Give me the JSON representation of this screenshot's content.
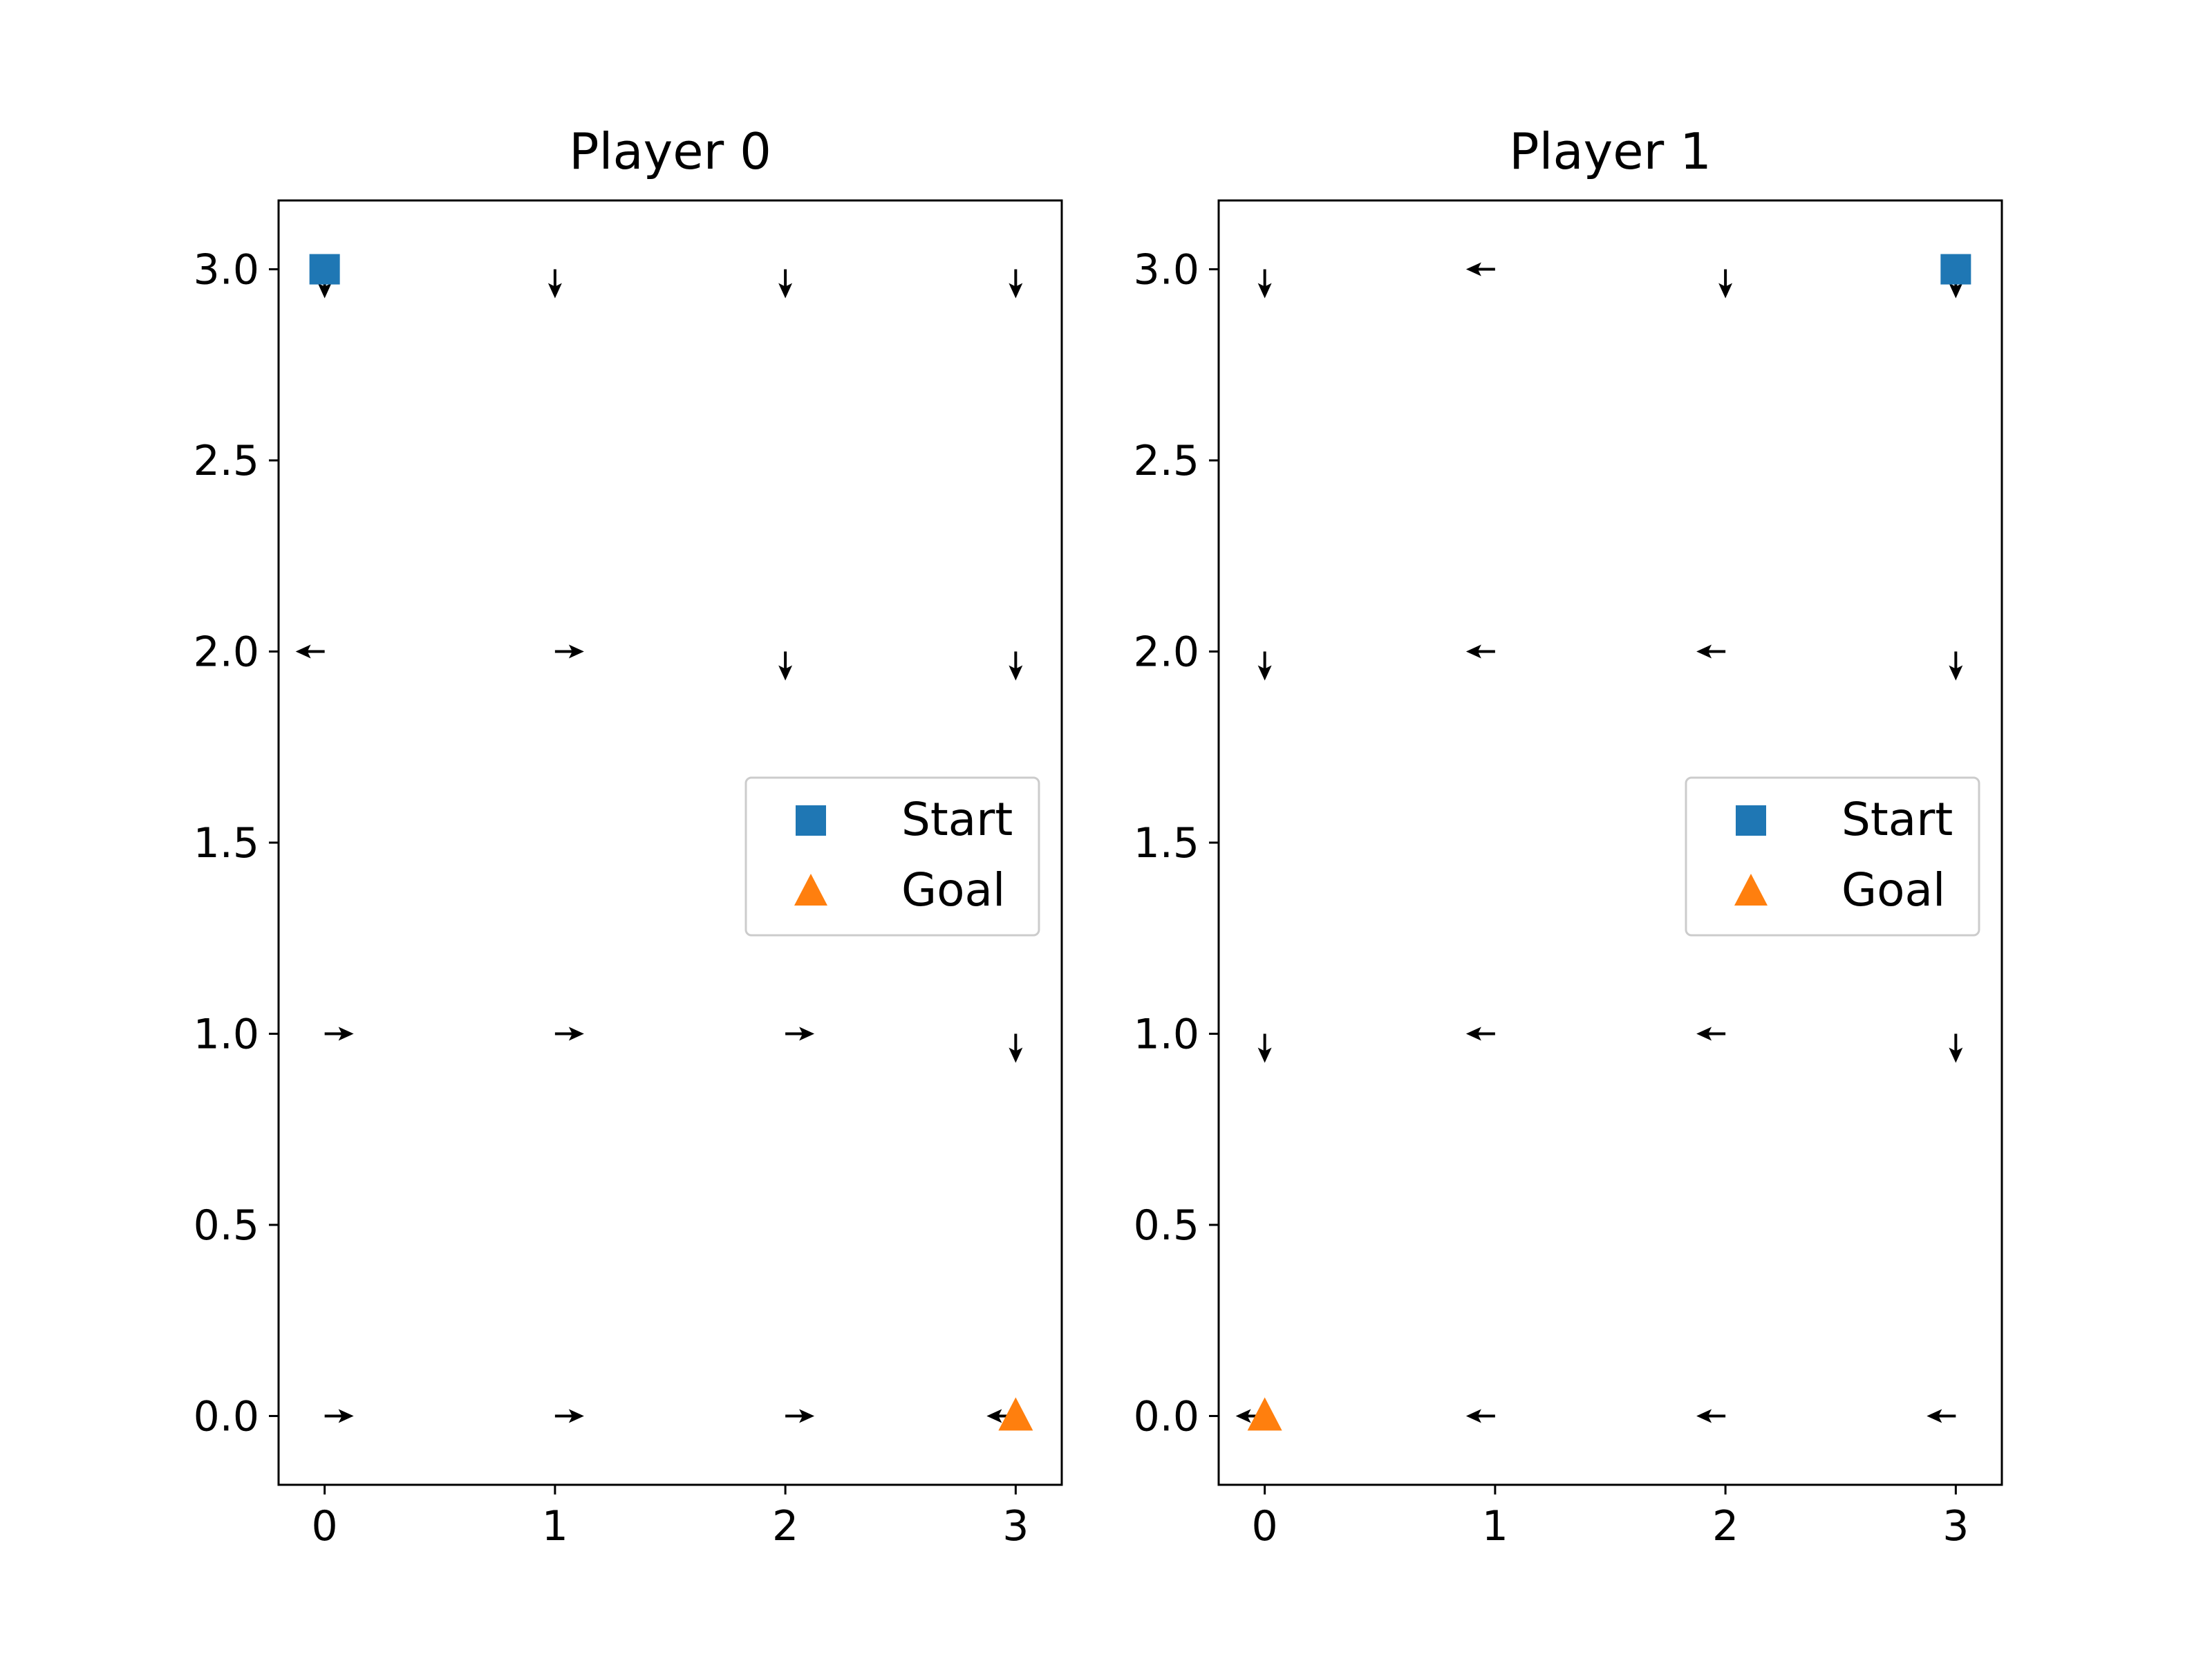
{
  "chart_data": [
    {
      "type": "quiver",
      "title": "Player 0",
      "xlabel": "",
      "ylabel": "",
      "xlim": [
        -0.2,
        3.2
      ],
      "ylim": [
        -0.18,
        3.18
      ],
      "xticks": [
        0,
        1,
        2,
        3
      ],
      "xtick_labels": [
        "0",
        "1",
        "2",
        "3"
      ],
      "yticks": [
        0.0,
        0.5,
        1.0,
        1.5,
        2.0,
        2.5,
        3.0
      ],
      "ytick_labels": [
        "0.0",
        "0.5",
        "1.0",
        "1.5",
        "2.0",
        "2.5",
        "3.0"
      ],
      "arrows": [
        {
          "x": 0,
          "y": 3,
          "dir": "down"
        },
        {
          "x": 1,
          "y": 3,
          "dir": "down"
        },
        {
          "x": 2,
          "y": 3,
          "dir": "down"
        },
        {
          "x": 3,
          "y": 3,
          "dir": "down"
        },
        {
          "x": 0,
          "y": 2,
          "dir": "left"
        },
        {
          "x": 1,
          "y": 2,
          "dir": "right"
        },
        {
          "x": 2,
          "y": 2,
          "dir": "down"
        },
        {
          "x": 3,
          "y": 2,
          "dir": "down"
        },
        {
          "x": 0,
          "y": 1,
          "dir": "right"
        },
        {
          "x": 1,
          "y": 1,
          "dir": "right"
        },
        {
          "x": 2,
          "y": 1,
          "dir": "right"
        },
        {
          "x": 3,
          "y": 1,
          "dir": "down"
        },
        {
          "x": 0,
          "y": 0,
          "dir": "right"
        },
        {
          "x": 1,
          "y": 0,
          "dir": "right"
        },
        {
          "x": 2,
          "y": 0,
          "dir": "right"
        },
        {
          "x": 3,
          "y": 0,
          "dir": "left"
        }
      ],
      "start": {
        "x": 0,
        "y": 3
      },
      "goal": {
        "x": 3,
        "y": 0
      },
      "legend": {
        "location": "center-right",
        "entries": [
          "Start",
          "Goal"
        ]
      }
    },
    {
      "type": "quiver",
      "title": "Player 1",
      "xlabel": "",
      "ylabel": "",
      "xlim": [
        -0.2,
        3.2
      ],
      "ylim": [
        -0.18,
        3.18
      ],
      "xticks": [
        0,
        1,
        2,
        3
      ],
      "xtick_labels": [
        "0",
        "1",
        "2",
        "3"
      ],
      "yticks": [
        0.0,
        0.5,
        1.0,
        1.5,
        2.0,
        2.5,
        3.0
      ],
      "ytick_labels": [
        "0.0",
        "0.5",
        "1.0",
        "1.5",
        "2.0",
        "2.5",
        "3.0"
      ],
      "arrows": [
        {
          "x": 0,
          "y": 3,
          "dir": "down"
        },
        {
          "x": 1,
          "y": 3,
          "dir": "left"
        },
        {
          "x": 2,
          "y": 3,
          "dir": "down"
        },
        {
          "x": 3,
          "y": 3,
          "dir": "down"
        },
        {
          "x": 0,
          "y": 2,
          "dir": "down"
        },
        {
          "x": 1,
          "y": 2,
          "dir": "left"
        },
        {
          "x": 2,
          "y": 2,
          "dir": "left"
        },
        {
          "x": 3,
          "y": 2,
          "dir": "down"
        },
        {
          "x": 0,
          "y": 1,
          "dir": "down"
        },
        {
          "x": 1,
          "y": 1,
          "dir": "left"
        },
        {
          "x": 2,
          "y": 1,
          "dir": "left"
        },
        {
          "x": 3,
          "y": 1,
          "dir": "down"
        },
        {
          "x": 0,
          "y": 0,
          "dir": "left"
        },
        {
          "x": 1,
          "y": 0,
          "dir": "left"
        },
        {
          "x": 2,
          "y": 0,
          "dir": "left"
        },
        {
          "x": 3,
          "y": 0,
          "dir": "left"
        }
      ],
      "start": {
        "x": 3,
        "y": 3
      },
      "goal": {
        "x": 0,
        "y": 0
      },
      "legend": {
        "location": "center-right",
        "entries": [
          "Start",
          "Goal"
        ]
      }
    }
  ],
  "colors": {
    "start": "#1f77b4",
    "goal": "#ff7f0e",
    "arrow": "#000000",
    "axes": "#000000",
    "legend_border": "#cccccc"
  }
}
